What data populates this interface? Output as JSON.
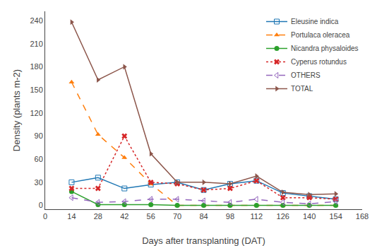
{
  "chart_data": {
    "type": "line",
    "x_label": "Days after transplanting (DAT)",
    "y_label": "Density (plants m-2)",
    "x": [
      14,
      28,
      42,
      56,
      70,
      84,
      98,
      112,
      126,
      140,
      154
    ],
    "series": [
      {
        "name": "Eleusine indica",
        "values": [
          30,
          36,
          22,
          27,
          30,
          20,
          28,
          32,
          16,
          12,
          8
        ],
        "marker": "square-open",
        "line_style": "solid"
      },
      {
        "name": "Portulaca oleracea",
        "values": [
          160,
          92,
          62,
          28,
          0,
          0,
          0,
          0,
          0,
          0,
          0
        ],
        "marker": "triangle-up",
        "line_style": "dash"
      },
      {
        "name": "Nicandra physaloides",
        "values": [
          18,
          1,
          1,
          1,
          0,
          0,
          0,
          0,
          0,
          0,
          0
        ],
        "marker": "circle",
        "line_style": "solid"
      },
      {
        "name": "Cyperus rotundus",
        "values": [
          22,
          22,
          90,
          30,
          28,
          20,
          22,
          32,
          10,
          10,
          8
        ],
        "marker": "x",
        "line_style": "dot"
      },
      {
        "name": "OTHERS",
        "values": [
          10,
          4,
          5,
          8,
          8,
          6,
          4,
          8,
          4,
          2,
          5
        ],
        "marker": "triangle-left-open",
        "line_style": "dash"
      },
      {
        "name": "TOTAL",
        "values": [
          238,
          163,
          180,
          67,
          30,
          30,
          28,
          38,
          17,
          14,
          15
        ],
        "marker": "triangle-right",
        "line_style": "solid"
      }
    ],
    "xlim": [
      0,
      168
    ],
    "xticks": [
      0,
      14,
      28,
      42,
      56,
      70,
      84,
      98,
      112,
      126,
      140,
      154,
      168
    ],
    "ylim": [
      -5,
      252
    ],
    "yticks": [
      0,
      30,
      60,
      90,
      120,
      150,
      180,
      210,
      240
    ],
    "grid": false,
    "legend": "upper right"
  }
}
